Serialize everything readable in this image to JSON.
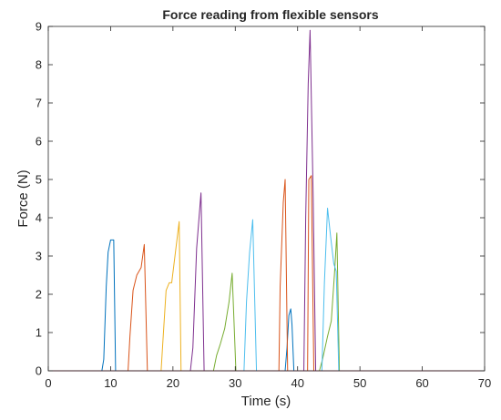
{
  "chart_data": {
    "type": "line",
    "title": "Force reading from flexible sensors",
    "xlabel": "Time (s)",
    "ylabel": "Force (N)",
    "xlim": [
      0,
      70
    ],
    "ylim": [
      0,
      9
    ],
    "xticks": [
      0,
      10,
      20,
      30,
      40,
      50,
      60,
      70
    ],
    "yticks": [
      0,
      1,
      2,
      3,
      4,
      5,
      6,
      7,
      8,
      9
    ],
    "grid": false,
    "legend": "none",
    "series": [
      {
        "color": "#0072BD",
        "points": [
          [
            0,
            0
          ],
          [
            8.6,
            0
          ],
          [
            8.9,
            0.3
          ],
          [
            9.3,
            2.2
          ],
          [
            9.6,
            3.1
          ],
          [
            10,
            3.42
          ],
          [
            10.5,
            3.42
          ],
          [
            10.8,
            0
          ],
          [
            38,
            0
          ],
          [
            38.3,
            0.6
          ],
          [
            38.6,
            1.45
          ],
          [
            38.9,
            1.62
          ],
          [
            39.1,
            1.2
          ],
          [
            39.4,
            0
          ],
          [
            70,
            0
          ]
        ]
      },
      {
        "color": "#D95319",
        "points": [
          [
            0,
            0
          ],
          [
            12.8,
            0
          ],
          [
            13.1,
            0.9
          ],
          [
            13.6,
            2.1
          ],
          [
            14.2,
            2.5
          ],
          [
            14.9,
            2.7
          ],
          [
            15.4,
            3.3
          ],
          [
            15.9,
            0
          ],
          [
            37,
            0
          ],
          [
            37.2,
            2.2
          ],
          [
            37.7,
            4.4
          ],
          [
            38,
            5.0
          ],
          [
            38.4,
            0
          ],
          [
            41.6,
            0
          ],
          [
            41.8,
            5.0
          ],
          [
            42.2,
            5.1
          ],
          [
            42.6,
            0
          ],
          [
            70,
            0
          ]
        ]
      },
      {
        "color": "#EDB120",
        "points": [
          [
            0,
            0
          ],
          [
            18.1,
            0
          ],
          [
            18.4,
            0.8
          ],
          [
            18.9,
            2.1
          ],
          [
            19.4,
            2.3
          ],
          [
            19.8,
            2.3
          ],
          [
            20.4,
            3.1
          ],
          [
            21,
            3.9
          ],
          [
            21.3,
            0
          ],
          [
            70,
            0
          ]
        ]
      },
      {
        "color": "#7E2F8E",
        "points": [
          [
            0,
            0
          ],
          [
            22.8,
            0
          ],
          [
            23.2,
            0.6
          ],
          [
            23.8,
            3.2
          ],
          [
            24.5,
            4.65
          ],
          [
            25,
            0
          ],
          [
            41,
            0
          ],
          [
            41.3,
            4.0
          ],
          [
            41.7,
            7.5
          ],
          [
            42,
            8.9
          ],
          [
            42.5,
            4.5
          ],
          [
            42.9,
            0
          ],
          [
            70,
            0
          ]
        ]
      },
      {
        "color": "#77AC30",
        "points": [
          [
            0,
            0
          ],
          [
            26.5,
            0
          ],
          [
            27,
            0.4
          ],
          [
            27.6,
            0.7
          ],
          [
            28.3,
            1.1
          ],
          [
            29,
            1.8
          ],
          [
            29.5,
            2.55
          ],
          [
            30.1,
            0
          ],
          [
            43.5,
            0
          ],
          [
            44,
            0.3
          ],
          [
            44.8,
            0.9
          ],
          [
            45.4,
            1.3
          ],
          [
            45.9,
            2.5
          ],
          [
            46.3,
            3.6
          ],
          [
            46.7,
            0
          ],
          [
            70,
            0
          ]
        ]
      },
      {
        "color": "#4DBEEE",
        "points": [
          [
            0,
            0
          ],
          [
            31.4,
            0
          ],
          [
            31.8,
            1.8
          ],
          [
            32.3,
            3.1
          ],
          [
            32.8,
            3.95
          ],
          [
            33.4,
            0
          ],
          [
            43.9,
            0
          ],
          [
            44.3,
            2.3
          ],
          [
            44.8,
            4.25
          ],
          [
            45.3,
            3.5
          ],
          [
            45.8,
            2.8
          ],
          [
            46.2,
            2.6
          ],
          [
            46.6,
            0
          ],
          [
            70,
            0
          ]
        ]
      },
      {
        "color": "#A2142F",
        "points": [
          [
            0,
            0
          ],
          [
            70,
            0
          ]
        ]
      }
    ]
  }
}
